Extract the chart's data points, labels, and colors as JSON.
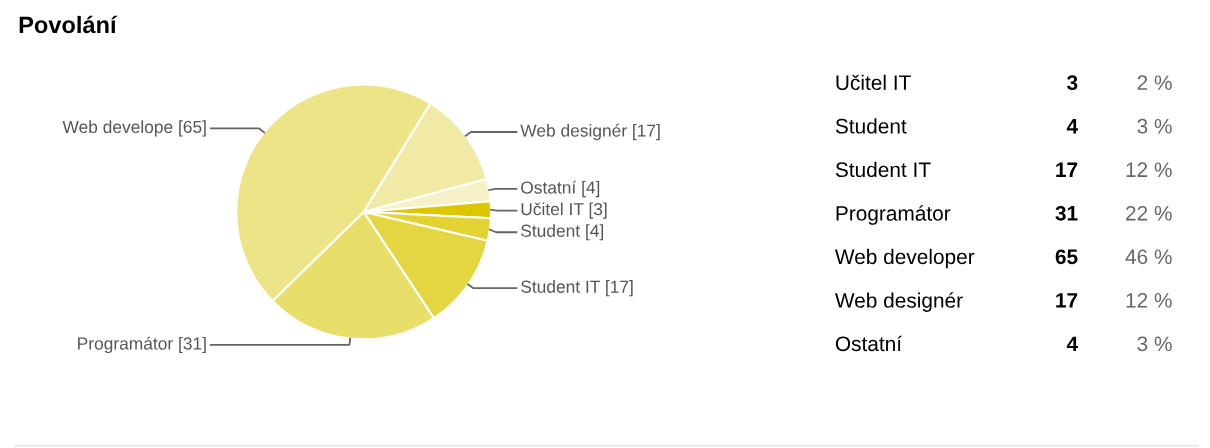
{
  "chart_data": [
    {
      "type": "pie",
      "title": "Povolání",
      "categories": [
        "Web designér [17]",
        "Ostatní [4]",
        "Učitel IT [3]",
        "Student [4]",
        "Student IT [17]",
        "Programátor [31]",
        "Web develope [65]"
      ],
      "values": [
        17,
        4,
        3,
        4,
        17,
        31,
        65
      ],
      "colors": [
        "#f1eaa6",
        "#f6f1c6",
        "#dcc600",
        "#e2d232",
        "#e4d640",
        "#e8de6a",
        "#ede488"
      ]
    },
    {
      "type": "other",
      "annotations": [
        "Učitel IT",
        "3",
        "2 %",
        "Student",
        "4",
        "3 %",
        "Student IT",
        "17",
        "12 %",
        "Programátor",
        "31",
        "22 %",
        "Web developer",
        "65",
        "46 %",
        "Web designér",
        "17",
        "12 %",
        "Ostatní",
        "4",
        "3 %"
      ]
    }
  ]
}
